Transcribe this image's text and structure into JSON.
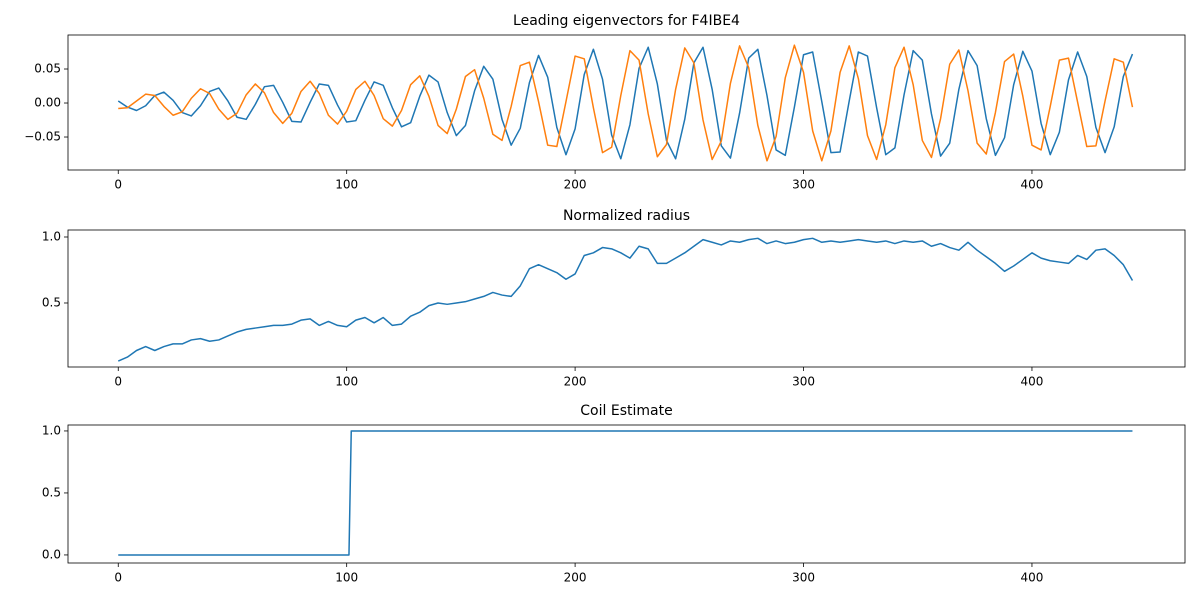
{
  "chart_data": [
    {
      "type": "line",
      "title": "Leading eigenvectors for F4IBE4",
      "x": [
        0,
        4,
        8,
        12,
        16,
        20,
        24,
        28,
        32,
        36,
        40,
        44,
        48,
        52,
        56,
        60,
        64,
        68,
        72,
        76,
        80,
        84,
        88,
        92,
        96,
        100,
        104,
        108,
        112,
        116,
        120,
        124,
        128,
        132,
        136,
        140,
        144,
        148,
        152,
        156,
        160,
        164,
        168,
        172,
        176,
        180,
        184,
        188,
        192,
        196,
        200,
        204,
        208,
        212,
        216,
        220,
        224,
        228,
        232,
        236,
        240,
        244,
        248,
        252,
        256,
        260,
        264,
        268,
        272,
        276,
        280,
        284,
        288,
        292,
        296,
        300,
        304,
        308,
        312,
        316,
        320,
        324,
        328,
        332,
        336,
        340,
        344,
        348,
        352,
        356,
        360,
        364,
        368,
        372,
        376,
        380,
        384,
        388,
        392,
        396,
        400,
        404,
        408,
        412,
        416,
        420,
        424,
        428,
        432,
        436,
        440,
        444
      ],
      "series": [
        {
          "color": "#1f77b4",
          "values": [
            0.003,
            -0.006,
            -0.011,
            -0.004,
            0.011,
            0.016,
            0.004,
            -0.014,
            -0.019,
            -0.004,
            0.017,
            0.022,
            0.003,
            -0.021,
            -0.024,
            -0.002,
            0.024,
            0.026,
            0.001,
            -0.027,
            -0.028,
            0.001,
            0.028,
            0.026,
            -0.003,
            -0.028,
            -0.026,
            0.004,
            0.031,
            0.026,
            -0.007,
            -0.035,
            -0.029,
            0.01,
            0.041,
            0.031,
            -0.014,
            -0.048,
            -0.033,
            0.018,
            0.054,
            0.035,
            -0.024,
            -0.062,
            -0.037,
            0.03,
            0.07,
            0.038,
            -0.036,
            -0.076,
            -0.038,
            0.042,
            0.079,
            0.035,
            -0.047,
            -0.082,
            -0.032,
            0.051,
            0.082,
            0.028,
            -0.055,
            -0.082,
            -0.024,
            0.059,
            0.082,
            0.02,
            -0.063,
            -0.081,
            -0.015,
            0.066,
            0.079,
            0.011,
            -0.069,
            -0.077,
            -0.006,
            0.071,
            0.075,
            0.002,
            -0.073,
            -0.072,
            0.003,
            0.075,
            0.069,
            -0.007,
            -0.076,
            -0.066,
            0.012,
            0.077,
            0.063,
            -0.016,
            -0.078,
            -0.059,
            0.02,
            0.077,
            0.055,
            -0.023,
            -0.077,
            -0.051,
            0.027,
            0.076,
            0.047,
            -0.03,
            -0.076,
            -0.043,
            0.034,
            0.075,
            0.039,
            -0.036,
            -0.073,
            -0.035,
            0.039,
            0.072
          ]
        },
        {
          "color": "#ff7f0e",
          "values": [
            -0.008,
            -0.007,
            0.003,
            0.013,
            0.011,
            -0.005,
            -0.018,
            -0.013,
            0.007,
            0.021,
            0.014,
            -0.009,
            -0.024,
            -0.015,
            0.012,
            0.028,
            0.015,
            -0.014,
            -0.03,
            -0.015,
            0.017,
            0.032,
            0.014,
            -0.018,
            -0.031,
            -0.012,
            0.02,
            0.032,
            0.011,
            -0.023,
            -0.034,
            -0.011,
            0.027,
            0.04,
            0.01,
            -0.033,
            -0.045,
            -0.009,
            0.039,
            0.049,
            0.007,
            -0.046,
            -0.055,
            -0.005,
            0.055,
            0.06,
            0.002,
            -0.062,
            -0.064,
            0.002,
            0.069,
            0.065,
            -0.007,
            -0.073,
            -0.065,
            0.011,
            0.077,
            0.063,
            -0.016,
            -0.079,
            -0.061,
            0.02,
            0.081,
            0.059,
            -0.025,
            -0.083,
            -0.056,
            0.029,
            0.084,
            0.052,
            -0.033,
            -0.085,
            -0.049,
            0.037,
            0.085,
            0.045,
            -0.041,
            -0.085,
            -0.041,
            0.045,
            0.084,
            0.036,
            -0.048,
            -0.083,
            -0.032,
            0.052,
            0.082,
            0.027,
            -0.055,
            -0.08,
            -0.023,
            0.057,
            0.078,
            0.018,
            -0.059,
            -0.075,
            -0.014,
            0.061,
            0.072,
            0.01,
            -0.062,
            -0.069,
            -0.005,
            0.063,
            0.066,
            0.001,
            -0.064,
            -0.063,
            0.003,
            0.065,
            0.06,
            -0.006
          ]
        }
      ],
      "xlim": [
        -22,
        467
      ],
      "xticks": [
        0,
        100,
        200,
        300,
        400
      ],
      "ylim": [
        -0.0985,
        0.1
      ],
      "yticks": [
        {
          "value": -0.05,
          "label": "−0.05"
        },
        {
          "value": 0,
          "label": "0.00"
        },
        {
          "value": 0.05,
          "label": "0.05"
        }
      ]
    },
    {
      "type": "line",
      "title": "Normalized radius",
      "x": [
        0,
        4,
        8,
        12,
        16,
        20,
        24,
        28,
        32,
        36,
        40,
        44,
        48,
        52,
        56,
        60,
        64,
        68,
        72,
        76,
        80,
        84,
        88,
        92,
        96,
        100,
        104,
        108,
        112,
        116,
        120,
        124,
        128,
        132,
        136,
        140,
        144,
        148,
        152,
        156,
        160,
        164,
        168,
        172,
        176,
        180,
        184,
        188,
        192,
        196,
        200,
        204,
        208,
        212,
        216,
        220,
        224,
        228,
        232,
        236,
        240,
        244,
        248,
        252,
        256,
        260,
        264,
        268,
        272,
        276,
        280,
        284,
        288,
        292,
        296,
        300,
        304,
        308,
        312,
        316,
        320,
        324,
        328,
        332,
        336,
        340,
        344,
        348,
        352,
        356,
        360,
        364,
        368,
        372,
        376,
        380,
        384,
        388,
        392,
        396,
        400,
        404,
        408,
        412,
        416,
        420,
        424,
        428,
        432,
        436,
        440,
        444
      ],
      "series": [
        {
          "color": "#1f77b4",
          "values": [
            0.06,
            0.09,
            0.14,
            0.17,
            0.14,
            0.17,
            0.19,
            0.19,
            0.22,
            0.23,
            0.21,
            0.22,
            0.25,
            0.28,
            0.3,
            0.31,
            0.32,
            0.33,
            0.33,
            0.34,
            0.37,
            0.38,
            0.33,
            0.36,
            0.33,
            0.32,
            0.37,
            0.39,
            0.35,
            0.39,
            0.33,
            0.34,
            0.4,
            0.43,
            0.48,
            0.5,
            0.49,
            0.5,
            0.51,
            0.53,
            0.55,
            0.58,
            0.56,
            0.55,
            0.63,
            0.76,
            0.79,
            0.76,
            0.73,
            0.68,
            0.72,
            0.86,
            0.88,
            0.92,
            0.91,
            0.88,
            0.84,
            0.93,
            0.91,
            0.8,
            0.8,
            0.84,
            0.88,
            0.93,
            0.98,
            0.96,
            0.94,
            0.97,
            0.96,
            0.98,
            0.99,
            0.95,
            0.97,
            0.95,
            0.96,
            0.98,
            0.99,
            0.96,
            0.97,
            0.96,
            0.97,
            0.98,
            0.97,
            0.96,
            0.97,
            0.95,
            0.97,
            0.96,
            0.97,
            0.93,
            0.95,
            0.92,
            0.9,
            0.96,
            0.9,
            0.85,
            0.8,
            0.74,
            0.78,
            0.83,
            0.88,
            0.84,
            0.82,
            0.81,
            0.8,
            0.86,
            0.83,
            0.9,
            0.91,
            0.86,
            0.79,
            0.67
          ]
        }
      ],
      "xlim": [
        -22,
        467
      ],
      "xticks": [
        0,
        100,
        200,
        300,
        400
      ],
      "ylim": [
        0.015,
        1.053
      ],
      "yticks": [
        0.5,
        {
          "value": 1,
          "label": "1.0"
        }
      ]
    },
    {
      "type": "line",
      "title": "Coil Estimate",
      "x": [
        0,
        101,
        102,
        444
      ],
      "series": [
        {
          "color": "#1f77b4",
          "values": [
            0,
            0,
            1,
            1
          ]
        }
      ],
      "xlim": [
        -22,
        467
      ],
      "xticks": [
        0,
        100,
        200,
        300,
        400
      ],
      "ylim": [
        -0.065,
        1.048
      ],
      "yticks": [
        {
          "value": 0,
          "label": "0.0"
        },
        0.5,
        {
          "value": 1,
          "label": "1.0"
        }
      ]
    }
  ]
}
